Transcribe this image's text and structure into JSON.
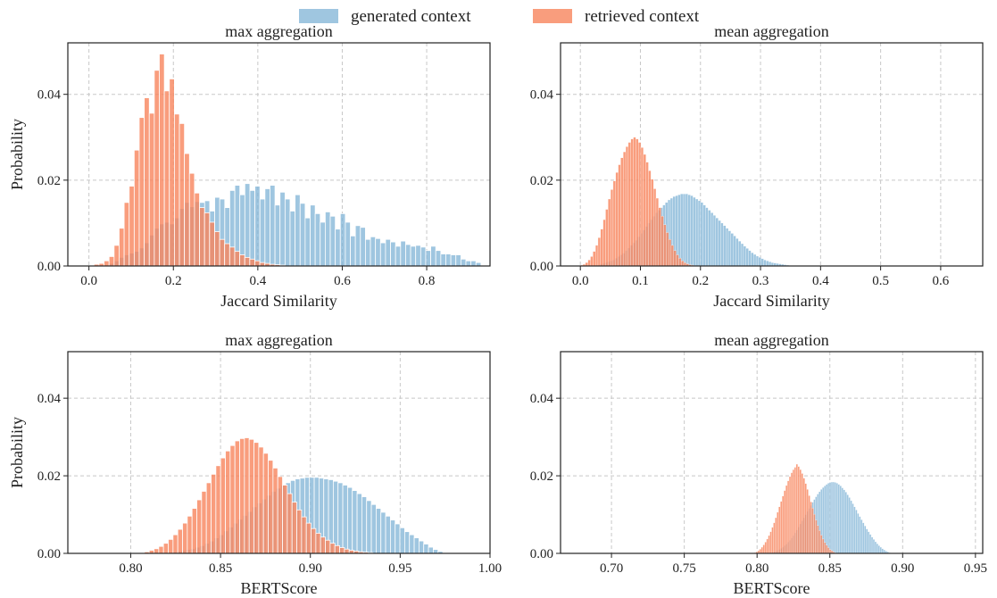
{
  "colors": {
    "generated": "#7fb3d5",
    "retrieved": "#f7845c"
  },
  "chart_data": {
    "type": "bar",
    "legend": {
      "placement": "top-center",
      "entries": [
        {
          "key": "generated",
          "label": "generated context"
        },
        {
          "key": "retrieved",
          "label": "retrieved context"
        }
      ]
    },
    "panels": [
      {
        "id": "p1",
        "title": "max aggregation",
        "xlabel": "Jaccard Similarity",
        "ylabel": "Probability",
        "xlim": [
          -0.05,
          0.95
        ],
        "ylim": [
          0,
          0.052
        ],
        "xticks": [
          0.0,
          0.2,
          0.4,
          0.6,
          0.8
        ],
        "xtick_labels": [
          "0.0",
          "0.2",
          "0.4",
          "0.6",
          "0.8"
        ],
        "yticks": [
          0.0,
          0.02,
          0.04
        ],
        "ytick_labels": [
          "0.00",
          "0.02",
          "0.04"
        ],
        "grid": true,
        "bin_width": 0.0119,
        "series": [
          {
            "key": "generated",
            "start": 0.048,
            "values": [
              0.0006,
              0.0012,
              0.002,
              0.0026,
              0.003,
              0.0034,
              0.0042,
              0.0054,
              0.0072,
              0.0088,
              0.0098,
              0.0102,
              0.0098,
              0.0112,
              0.0134,
              0.0148,
              0.0138,
              0.015,
              0.0148,
              0.0152,
              0.0128,
              0.016,
              0.0156,
              0.0136,
              0.0176,
              0.0188,
              0.0166,
              0.0192,
              0.0176,
              0.0186,
              0.0156,
              0.018,
              0.0188,
              0.0142,
              0.0172,
              0.0156,
              0.0128,
              0.0166,
              0.0146,
              0.0112,
              0.0142,
              0.0122,
              0.0102,
              0.0126,
              0.0116,
              0.0086,
              0.0122,
              0.0102,
              0.007,
              0.0094,
              0.009,
              0.0062,
              0.0068,
              0.0064,
              0.0054,
              0.0062,
              0.0056,
              0.0046,
              0.0058,
              0.005,
              0.0046,
              0.0048,
              0.0044,
              0.0036,
              0.0046,
              0.0036,
              0.0028,
              0.0028,
              0.0026,
              0.0026,
              0.0016,
              0.0012,
              0.0012,
              0.0008
            ]
          },
          {
            "key": "retrieved",
            "start": 0.012,
            "values": [
              0.0004,
              0.0006,
              0.0012,
              0.0022,
              0.0048,
              0.0088,
              0.0148,
              0.0186,
              0.027,
              0.0346,
              0.0392,
              0.0356,
              0.0456,
              0.0494,
              0.0408,
              0.0436,
              0.0354,
              0.0332,
              0.0262,
              0.0216,
              0.017,
              0.0136,
              0.0124,
              0.0102,
              0.008,
              0.0062,
              0.0052,
              0.0044,
              0.0034,
              0.0026,
              0.002,
              0.0016,
              0.0012,
              0.0008,
              0.0006,
              0.0004,
              0.0003,
              0.0002
            ]
          }
        ]
      },
      {
        "id": "p2",
        "title": "mean aggregation",
        "xlabel": "Jaccard Similarity",
        "ylabel": "",
        "xlim": [
          -0.033,
          0.67
        ],
        "ylim": [
          0,
          0.052
        ],
        "xticks": [
          0.0,
          0.1,
          0.2,
          0.3,
          0.4,
          0.5,
          0.6
        ],
        "xtick_labels": [
          "0.0",
          "0.1",
          "0.2",
          "0.3",
          "0.4",
          "0.5",
          "0.6"
        ],
        "yticks": [
          0.0,
          0.02,
          0.04
        ],
        "ytick_labels": [
          "0.00",
          "0.02",
          "0.04"
        ],
        "grid": true,
        "bin_width": 0.0042,
        "series": [
          {
            "key": "generated",
            "start": 0.028,
            "values": [
              0.0002,
              0.0004,
              0.0006,
              0.0008,
              0.001,
              0.0012,
              0.0014,
              0.0018,
              0.0022,
              0.0026,
              0.003,
              0.0036,
              0.0042,
              0.0048,
              0.0054,
              0.006,
              0.0068,
              0.0076,
              0.0084,
              0.0092,
              0.01,
              0.0108,
              0.0116,
              0.0124,
              0.013,
              0.0136,
              0.0142,
              0.0148,
              0.0154,
              0.0158,
              0.0162,
              0.0164,
              0.0166,
              0.0168,
              0.0168,
              0.0168,
              0.0166,
              0.0164,
              0.016,
              0.0156,
              0.0152,
              0.0148,
              0.0142,
              0.0136,
              0.013,
              0.0124,
              0.0118,
              0.0112,
              0.0106,
              0.01,
              0.0094,
              0.0088,
              0.0082,
              0.0076,
              0.007,
              0.0064,
              0.0058,
              0.0052,
              0.0046,
              0.0041,
              0.0036,
              0.0031,
              0.0027,
              0.0023,
              0.002,
              0.0017,
              0.0014,
              0.0012,
              0.001,
              0.0008,
              0.0007,
              0.0006,
              0.0005,
              0.0004,
              0.0003,
              0.0002
            ]
          },
          {
            "key": "retrieved",
            "start": 0.0,
            "values": [
              0.0002,
              0.0004,
              0.0008,
              0.0014,
              0.0022,
              0.0034,
              0.0048,
              0.0066,
              0.0086,
              0.0108,
              0.0132,
              0.0156,
              0.0178,
              0.0198,
              0.0218,
              0.0236,
              0.0252,
              0.0266,
              0.0278,
              0.0288,
              0.0296,
              0.03,
              0.0296,
              0.0288,
              0.0276,
              0.026,
              0.0242,
              0.0222,
              0.0202,
              0.018,
              0.0158,
              0.0136,
              0.0116,
              0.0096,
              0.0078,
              0.0062,
              0.0048,
              0.0036,
              0.0026,
              0.0018,
              0.0012,
              0.0008,
              0.0005,
              0.0003,
              0.0002
            ]
          }
        ]
      },
      {
        "id": "p3",
        "title": "max aggregation",
        "xlabel": "BERTScore",
        "ylabel": "Probability",
        "xlim": [
          0.765,
          1.0
        ],
        "ylim": [
          0,
          0.052
        ],
        "xticks": [
          0.8,
          0.85,
          0.9,
          0.95,
          1.0
        ],
        "xtick_labels": [
          "0.80",
          "0.85",
          "0.90",
          "0.95",
          "1.00"
        ],
        "yticks": [
          0.0,
          0.02,
          0.04
        ],
        "ytick_labels": [
          "0.00",
          "0.02",
          "0.04"
        ],
        "grid": true,
        "bin_width": 0.00265,
        "series": [
          {
            "key": "generated",
            "start": 0.82,
            "values": [
              0.0002,
              0.0004,
              0.0006,
              0.0008,
              0.001,
              0.0012,
              0.0016,
              0.002,
              0.0026,
              0.0032,
              0.004,
              0.0048,
              0.0058,
              0.0068,
              0.0078,
              0.0088,
              0.0098,
              0.0108,
              0.012,
              0.013,
              0.014,
              0.015,
              0.016,
              0.0168,
              0.0176,
              0.0182,
              0.0188,
              0.0192,
              0.0194,
              0.0196,
              0.0196,
              0.0196,
              0.0194,
              0.0192,
              0.019,
              0.0186,
              0.0182,
              0.0176,
              0.017,
              0.0162,
              0.0154,
              0.0146,
              0.0136,
              0.0126,
              0.0116,
              0.0106,
              0.0096,
              0.0086,
              0.0076,
              0.0066,
              0.0056,
              0.0048,
              0.004,
              0.0032,
              0.0024,
              0.0016,
              0.001,
              0.0005
            ]
          },
          {
            "key": "retrieved",
            "start": 0.805,
            "values": [
              0.0002,
              0.0004,
              0.0008,
              0.0012,
              0.0018,
              0.0026,
              0.0036,
              0.0048,
              0.0062,
              0.0078,
              0.0096,
              0.0116,
              0.0138,
              0.016,
              0.0182,
              0.0204,
              0.0226,
              0.0246,
              0.0264,
              0.0278,
              0.029,
              0.0296,
              0.0298,
              0.0294,
              0.0286,
              0.0274,
              0.0258,
              0.024,
              0.022,
              0.0198,
              0.0176,
              0.0154,
              0.0132,
              0.0112,
              0.0094,
              0.0078,
              0.0064,
              0.0052,
              0.0042,
              0.0034,
              0.0026,
              0.002,
              0.0015,
              0.0011,
              0.0008,
              0.0006,
              0.0004,
              0.0003,
              0.0002
            ]
          }
        ]
      },
      {
        "id": "p4",
        "title": "mean aggregation",
        "xlabel": "BERTScore",
        "ylabel": "",
        "xlim": [
          0.665,
          0.955
        ],
        "ylim": [
          0,
          0.052
        ],
        "xticks": [
          0.7,
          0.75,
          0.8,
          0.85,
          0.9,
          0.95
        ],
        "xtick_labels": [
          "0.70",
          "0.75",
          "0.80",
          "0.85",
          "0.90",
          "0.95"
        ],
        "yticks": [
          0.0,
          0.02,
          0.04
        ],
        "ytick_labels": [
          "0.00",
          "0.02",
          "0.04"
        ],
        "grid": true,
        "bin_width": 0.0012,
        "series": [
          {
            "key": "generated",
            "start": 0.81,
            "values": [
              0.0002,
              0.0004,
              0.0006,
              0.0008,
              0.001,
              0.0013,
              0.0016,
              0.002,
              0.0024,
              0.0029,
              0.0034,
              0.004,
              0.0046,
              0.0053,
              0.006,
              0.0068,
              0.0076,
              0.0084,
              0.0092,
              0.01,
              0.0108,
              0.0116,
              0.0124,
              0.0132,
              0.0139,
              0.0146,
              0.0153,
              0.0159,
              0.0165,
              0.017,
              0.0174,
              0.0178,
              0.0181,
              0.0183,
              0.0184,
              0.0184,
              0.0183,
              0.0181,
              0.0178,
              0.0174,
              0.0169,
              0.0164,
              0.0158,
              0.0151,
              0.0144,
              0.0136,
              0.0128,
              0.012,
              0.0112,
              0.0103,
              0.0095,
              0.0087,
              0.0079,
              0.0071,
              0.0063,
              0.0056,
              0.0049,
              0.0042,
              0.0036,
              0.003,
              0.0025,
              0.002,
              0.0016,
              0.0012,
              0.0009,
              0.0006,
              0.0004,
              0.0002
            ]
          },
          {
            "key": "retrieved",
            "start": 0.798,
            "values": [
              0.0002,
              0.0004,
              0.0007,
              0.0011,
              0.0016,
              0.0022,
              0.0029,
              0.0037,
              0.0046,
              0.0056,
              0.0067,
              0.0079,
              0.0092,
              0.0106,
              0.012,
              0.0134,
              0.0148,
              0.0162,
              0.0175,
              0.0187,
              0.0198,
              0.0208,
              0.0216,
              0.0222,
              0.023,
              0.0224,
              0.0216,
              0.0206,
              0.0194,
              0.018,
              0.0165,
              0.0149,
              0.0133,
              0.0117,
              0.0101,
              0.0086,
              0.0072,
              0.0059,
              0.0047,
              0.0037,
              0.0028,
              0.0021,
              0.0015,
              0.001,
              0.0007,
              0.0004,
              0.0002
            ]
          }
        ]
      }
    ]
  }
}
